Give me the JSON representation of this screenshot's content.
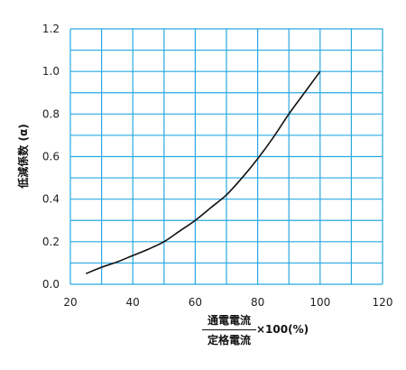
{
  "chart_data": {
    "type": "line",
    "ylabel": "低減係数 (α)",
    "xlabel": {
      "numerator": "通電電流",
      "denominator": "定格電流",
      "suffix": "×100(%)"
    },
    "xlim": [
      20,
      120
    ],
    "ylim": [
      0,
      1.2
    ],
    "x_ticks": [
      "20",
      "40",
      "60",
      "80",
      "100",
      "120"
    ],
    "y_ticks": [
      "0.0",
      "0.2",
      "0.4",
      "0.6",
      "0.8",
      "1.0",
      "1.2"
    ],
    "x_grid_step": 10,
    "y_grid_step": 0.1,
    "grid": true,
    "colors": {
      "grid": "#29a9e1",
      "line": "#111111"
    },
    "series": [
      {
        "x": [
          25,
          30,
          35,
          40,
          45,
          50,
          55,
          60,
          65,
          70,
          75,
          80,
          85,
          90,
          95,
          100
        ],
        "y": [
          0.05,
          0.08,
          0.105,
          0.135,
          0.165,
          0.2,
          0.25,
          0.3,
          0.36,
          0.42,
          0.5,
          0.59,
          0.69,
          0.8,
          0.9,
          1.0
        ]
      }
    ]
  }
}
